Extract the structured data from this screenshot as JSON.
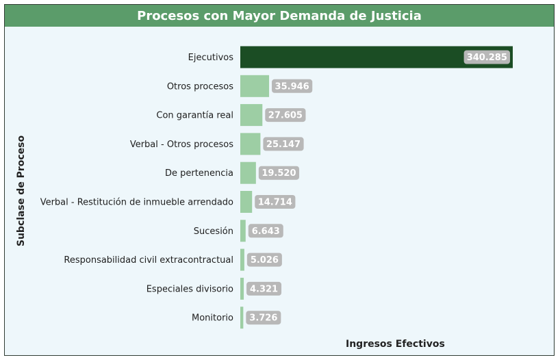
{
  "colors": {
    "title_bg": "#5b9c6a",
    "panel_bg": "#eef7fb",
    "bar_highlight": "#1b4d24",
    "bar_default": "#9dcea4",
    "value_pill": "#b8b8b8",
    "value_text": "#ffffff"
  },
  "chart_data": {
    "type": "bar",
    "orientation": "horizontal",
    "title": "Procesos con Mayor Demanda de Justicia",
    "xlabel": "Ingresos Efectivos",
    "ylabel": "Subclase de Proceso",
    "xlim": [
      0,
      340285
    ],
    "grid": false,
    "categories": [
      "Ejecutivos",
      "Otros procesos",
      "Con garantía real",
      "Verbal - Otros procesos",
      "De pertenencia",
      "Verbal - Restitución de inmueble arrendado",
      "Sucesión",
      "Responsabilidad civil extracontractual",
      "Especiales divisorio",
      "Monitorio"
    ],
    "values": [
      340285,
      35946,
      27605,
      25147,
      19520,
      14714,
      6643,
      5026,
      4321,
      3726
    ],
    "value_labels": [
      "340.285",
      "35.946",
      "27.605",
      "25.147",
      "19.520",
      "14.714",
      "6.643",
      "5.026",
      "4.321",
      "3.726"
    ]
  }
}
